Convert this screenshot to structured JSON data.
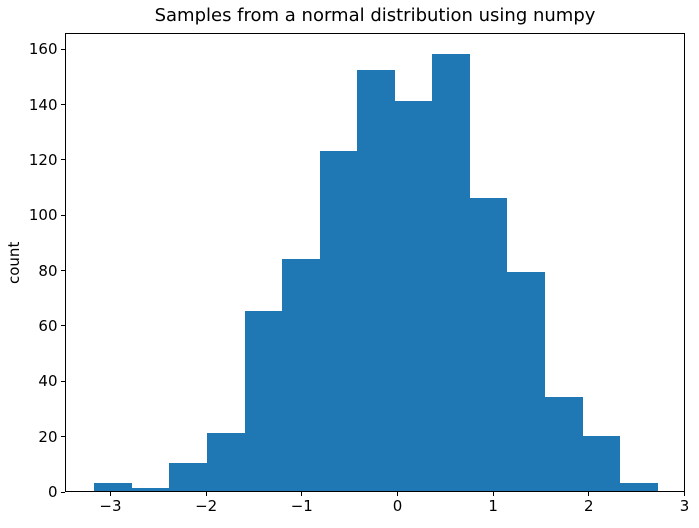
{
  "figure": {
    "background": "#ffffff",
    "text_color": "#000000",
    "spine_color": "#000000"
  },
  "chart_data": {
    "type": "bar",
    "subtype": "histogram",
    "title": "Samples from a normal distribution using numpy",
    "xlabel": "",
    "ylabel": "count",
    "bar_color": "#1f77b4",
    "grid": false,
    "legend": false,
    "n_bins": 15,
    "bin_edges": [
      -3.18,
      -2.787,
      -2.395,
      -2.002,
      -1.609,
      -1.217,
      -0.824,
      -0.431,
      -0.039,
      0.354,
      0.747,
      1.139,
      1.532,
      1.925,
      2.317,
      2.71
    ],
    "counts": [
      3,
      1,
      10,
      21,
      65,
      84,
      123,
      152,
      141,
      158,
      106,
      79,
      34,
      20,
      3
    ],
    "total_samples": 1000,
    "xlim": [
      -3.475,
      3.005
    ],
    "ylim": [
      0,
      165.9
    ],
    "xticks": [
      -3,
      -2,
      -1,
      0,
      1,
      2,
      3
    ],
    "xtick_labels": [
      "−3",
      "−2",
      "−1",
      "0",
      "1",
      "2",
      "3"
    ],
    "yticks": [
      0,
      20,
      40,
      60,
      80,
      100,
      120,
      140,
      160
    ],
    "ytick_labels": [
      "0",
      "20",
      "40",
      "60",
      "80",
      "100",
      "120",
      "140",
      "160"
    ]
  }
}
